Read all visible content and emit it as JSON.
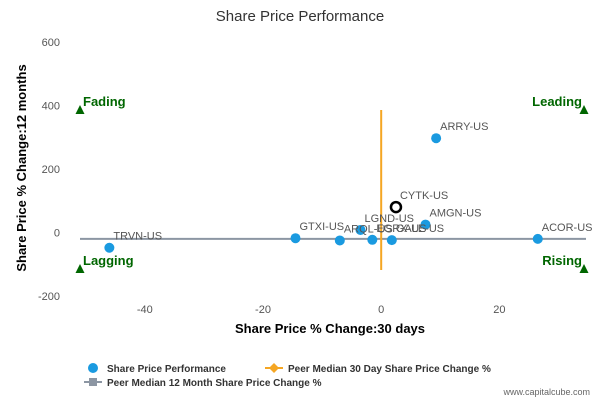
{
  "chart_data": {
    "type": "scatter",
    "title": "Share Price Performance",
    "xlabel": "Share Price % Change:30 days",
    "ylabel": "Share Price % Change:12 months",
    "xlim": [
      -53,
      35
    ],
    "ylim": [
      -200,
      600
    ],
    "x_ticks": [
      -40,
      -20,
      0,
      20
    ],
    "y_ticks": [
      -200,
      0,
      200,
      400,
      600
    ],
    "x_tick_labels": [
      "-40",
      "-20",
      "0",
      "20"
    ],
    "y_tick_labels": [
      "-200",
      "0",
      "200",
      "400",
      "600"
    ],
    "points": [
      {
        "label": "ARRY-US",
        "x": 9.3,
        "y": 297
      },
      {
        "label": "CYTK-US",
        "x": 2.5,
        "y": 80,
        "highlight": true
      },
      {
        "label": "AMGN-US",
        "x": 7.5,
        "y": 25
      },
      {
        "label": "LGND-US",
        "x": -3.5,
        "y": 8
      },
      {
        "label": "GTXI-US",
        "x": -14.5,
        "y": -18
      },
      {
        "label": "ACOR-US",
        "x": 26.5,
        "y": -20
      },
      {
        "label": "ARQL-US",
        "x": -7,
        "y": -25
      },
      {
        "label": "EGRX-US",
        "x": -1.5,
        "y": -23
      },
      {
        "label": "GALE-US",
        "x": 1.8,
        "y": -24
      },
      {
        "label": "TRVN-US",
        "x": -46,
        "y": -48
      }
    ],
    "peer_median_30d": 0,
    "peer_median_12m": -20,
    "quadrants": {
      "top_left": "Fading",
      "top_right": "Leading",
      "bottom_left": "Lagging",
      "bottom_right": "Rising"
    },
    "series": [
      {
        "name": "Share Price Performance",
        "color": "#1a9ae0",
        "marker": "circle"
      },
      {
        "name": "Peer Median 30 Day Share Price Change %",
        "color": "#f5a623",
        "marker": "diamond"
      },
      {
        "name": "Peer Median 12 Month Share Price Change %",
        "color": "#8c96a3",
        "marker": "square"
      }
    ],
    "legend_position": "bottom-left",
    "grid": false,
    "colors": {
      "point": "#1a9ae0",
      "highlight_stroke": "#000000",
      "vertical_median": "#f5a623",
      "horizontal_median": "#8c96a3",
      "quadrant": "#006600"
    }
  },
  "credit": "www.capitalcube.com"
}
